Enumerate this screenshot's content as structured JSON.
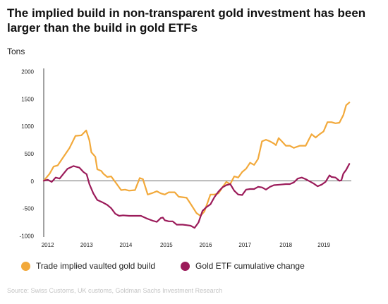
{
  "chart_data": {
    "type": "line",
    "title": "The implied build in non-transparent gold investment has been larger than the build in gold ETFs",
    "ylabel": "Tons",
    "xlabel": "",
    "ylim": [
      -1000,
      2000
    ],
    "xlim": [
      2012.0,
      2019.75
    ],
    "yticks": [
      2000,
      1500,
      1000,
      500,
      0,
      -500,
      -1000
    ],
    "xticks": [
      {
        "label": "2012",
        "value": 2012.1
      },
      {
        "label": "2013",
        "value": 2013.08
      },
      {
        "label": "2014",
        "value": 2014.07
      },
      {
        "label": "2015",
        "value": 2015.09
      },
      {
        "label": "2016",
        "value": 2016.08
      },
      {
        "label": "2017",
        "value": 2017.07
      },
      {
        "label": "2018",
        "value": 2018.1
      },
      {
        "label": "2019",
        "value": 2019.06
      }
    ],
    "grid": false,
    "zero_line": true,
    "legend_position": "bottom-left",
    "series": [
      {
        "name": "Trade implied vaulted gold build",
        "color": "#F2A93B",
        "points": [
          [
            2012.0,
            0
          ],
          [
            2012.15,
            130
          ],
          [
            2012.25,
            260
          ],
          [
            2012.35,
            280
          ],
          [
            2012.5,
            440
          ],
          [
            2012.65,
            600
          ],
          [
            2012.8,
            820
          ],
          [
            2012.95,
            830
          ],
          [
            2013.07,
            920
          ],
          [
            2013.15,
            740
          ],
          [
            2013.2,
            520
          ],
          [
            2013.3,
            440
          ],
          [
            2013.35,
            210
          ],
          [
            2013.45,
            180
          ],
          [
            2013.5,
            130
          ],
          [
            2013.6,
            70
          ],
          [
            2013.7,
            80
          ],
          [
            2013.8,
            -20
          ],
          [
            2013.95,
            -170
          ],
          [
            2014.05,
            -160
          ],
          [
            2014.15,
            -180
          ],
          [
            2014.3,
            -170
          ],
          [
            2014.42,
            50
          ],
          [
            2014.5,
            30
          ],
          [
            2014.62,
            -250
          ],
          [
            2014.75,
            -220
          ],
          [
            2014.85,
            -190
          ],
          [
            2014.95,
            -230
          ],
          [
            2015.05,
            -250
          ],
          [
            2015.15,
            -210
          ],
          [
            2015.3,
            -210
          ],
          [
            2015.4,
            -290
          ],
          [
            2015.5,
            -300
          ],
          [
            2015.6,
            -310
          ],
          [
            2015.7,
            -420
          ],
          [
            2015.85,
            -590
          ],
          [
            2015.95,
            -640
          ],
          [
            2016.05,
            -560
          ],
          [
            2016.2,
            -250
          ],
          [
            2016.3,
            -250
          ],
          [
            2016.4,
            -230
          ],
          [
            2016.5,
            -120
          ],
          [
            2016.6,
            -20
          ],
          [
            2016.7,
            -60
          ],
          [
            2016.8,
            80
          ],
          [
            2016.9,
            60
          ],
          [
            2017.0,
            160
          ],
          [
            2017.1,
            220
          ],
          [
            2017.2,
            330
          ],
          [
            2017.3,
            290
          ],
          [
            2017.4,
            400
          ],
          [
            2017.5,
            720
          ],
          [
            2017.6,
            750
          ],
          [
            2017.7,
            720
          ],
          [
            2017.8,
            680
          ],
          [
            2017.85,
            650
          ],
          [
            2017.92,
            780
          ],
          [
            2018.0,
            720
          ],
          [
            2018.1,
            640
          ],
          [
            2018.2,
            640
          ],
          [
            2018.3,
            600
          ],
          [
            2018.45,
            640
          ],
          [
            2018.6,
            640
          ],
          [
            2018.75,
            850
          ],
          [
            2018.85,
            790
          ],
          [
            2018.95,
            850
          ],
          [
            2019.05,
            900
          ],
          [
            2019.15,
            1070
          ],
          [
            2019.25,
            1070
          ],
          [
            2019.35,
            1050
          ],
          [
            2019.45,
            1060
          ],
          [
            2019.55,
            1200
          ],
          [
            2019.62,
            1380
          ],
          [
            2019.7,
            1430
          ]
        ]
      },
      {
        "name": "Gold ETF cumulative change",
        "color": "#9B1B5A",
        "points": [
          [
            2012.0,
            0
          ],
          [
            2012.1,
            20
          ],
          [
            2012.2,
            -20
          ],
          [
            2012.3,
            60
          ],
          [
            2012.4,
            40
          ],
          [
            2012.5,
            130
          ],
          [
            2012.6,
            220
          ],
          [
            2012.75,
            270
          ],
          [
            2012.9,
            240
          ],
          [
            2013.0,
            160
          ],
          [
            2013.08,
            120
          ],
          [
            2013.15,
            -60
          ],
          [
            2013.25,
            -230
          ],
          [
            2013.35,
            -350
          ],
          [
            2013.5,
            -400
          ],
          [
            2013.6,
            -440
          ],
          [
            2013.7,
            -500
          ],
          [
            2013.8,
            -600
          ],
          [
            2013.9,
            -640
          ],
          [
            2014.0,
            -630
          ],
          [
            2014.15,
            -640
          ],
          [
            2014.3,
            -640
          ],
          [
            2014.45,
            -640
          ],
          [
            2014.6,
            -690
          ],
          [
            2014.75,
            -730
          ],
          [
            2014.85,
            -750
          ],
          [
            2014.95,
            -680
          ],
          [
            2015.0,
            -670
          ],
          [
            2015.05,
            -720
          ],
          [
            2015.15,
            -740
          ],
          [
            2015.25,
            -740
          ],
          [
            2015.35,
            -800
          ],
          [
            2015.5,
            -800
          ],
          [
            2015.6,
            -810
          ],
          [
            2015.7,
            -820
          ],
          [
            2015.8,
            -860
          ],
          [
            2015.9,
            -760
          ],
          [
            2016.0,
            -550
          ],
          [
            2016.1,
            -480
          ],
          [
            2016.2,
            -430
          ],
          [
            2016.3,
            -300
          ],
          [
            2016.4,
            -200
          ],
          [
            2016.5,
            -120
          ],
          [
            2016.6,
            -80
          ],
          [
            2016.7,
            -60
          ],
          [
            2016.8,
            -180
          ],
          [
            2016.9,
            -250
          ],
          [
            2017.0,
            -260
          ],
          [
            2017.1,
            -160
          ],
          [
            2017.2,
            -150
          ],
          [
            2017.3,
            -150
          ],
          [
            2017.4,
            -110
          ],
          [
            2017.5,
            -120
          ],
          [
            2017.6,
            -160
          ],
          [
            2017.7,
            -110
          ],
          [
            2017.8,
            -80
          ],
          [
            2017.95,
            -70
          ],
          [
            2018.1,
            -60
          ],
          [
            2018.2,
            -60
          ],
          [
            2018.3,
            -30
          ],
          [
            2018.4,
            40
          ],
          [
            2018.5,
            60
          ],
          [
            2018.6,
            30
          ],
          [
            2018.7,
            -10
          ],
          [
            2018.8,
            -50
          ],
          [
            2018.9,
            -100
          ],
          [
            2019.0,
            -70
          ],
          [
            2019.1,
            -20
          ],
          [
            2019.2,
            100
          ],
          [
            2019.25,
            70
          ],
          [
            2019.35,
            60
          ],
          [
            2019.45,
            0
          ],
          [
            2019.5,
            10
          ],
          [
            2019.55,
            130
          ],
          [
            2019.62,
            200
          ],
          [
            2019.7,
            310
          ]
        ]
      }
    ],
    "source": "Source: Swiss Customs, UK customs, Goldman Sachs Investment Research"
  }
}
